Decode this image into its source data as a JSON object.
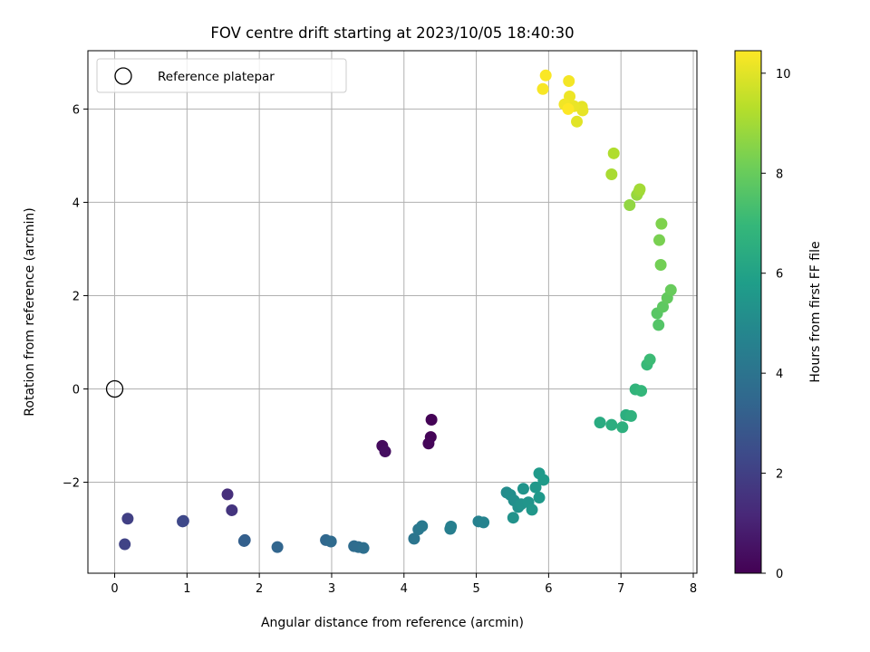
{
  "chart_data": {
    "type": "scatter",
    "title": "FOV centre drift starting at 2023/10/05 18:40:30",
    "xlabel": "Angular distance from reference (arcmin)",
    "ylabel": "Rotation from reference (arcmin)",
    "xlim": [
      -0.37,
      8.05
    ],
    "ylim": [
      -3.95,
      7.25
    ],
    "xticks": [
      0,
      1,
      2,
      3,
      4,
      5,
      6,
      7,
      8
    ],
    "yticks": [
      -2,
      0,
      2,
      4,
      6
    ],
    "grid": true,
    "legend": {
      "placement": "top-left",
      "entries": [
        "Reference platepar"
      ]
    },
    "reference_point": {
      "x": 0,
      "y": 0,
      "marker": "open-circle"
    },
    "colorbar": {
      "label": "Hours from first FF file",
      "range": [
        0,
        10.45
      ],
      "ticks": [
        0,
        2,
        4,
        6,
        8,
        10
      ],
      "colormap": "viridis"
    },
    "colors": {
      "viridis": [
        "#440154",
        "#482878",
        "#3e4989",
        "#31688e",
        "#26828e",
        "#1f9e89",
        "#35b779",
        "#6ece58",
        "#b5de2b",
        "#fde725"
      ],
      "grid": "#b0b0b0",
      "axis": "#000000"
    },
    "series": [
      {
        "x": [
          4.38,
          4.37,
          4.34,
          3.7,
          3.74,
          1.56,
          1.62,
          0.18,
          0.14,
          0.95,
          0.94,
          1.8,
          1.79,
          2.25,
          2.92,
          2.99,
          3.31,
          3.37,
          3.44,
          4.14,
          4.2,
          4.25,
          4.64,
          4.65,
          5.03,
          5.1,
          5.42,
          5.47,
          5.52,
          5.58,
          5.62,
          5.65,
          5.72,
          5.77,
          5.82,
          5.87,
          5.87,
          5.93,
          5.51,
          6.71,
          6.87,
          7.02,
          7.07,
          7.14,
          7.2,
          7.28,
          7.36,
          7.4,
          7.52,
          7.5,
          7.58,
          7.64,
          7.69,
          7.55,
          7.53,
          7.56,
          7.12,
          7.22,
          7.25,
          7.26,
          6.87,
          6.9,
          6.39,
          6.46,
          6.47,
          6.35,
          6.29,
          6.22,
          6.28,
          5.92,
          5.96,
          6.27
        ],
        "y": [
          -0.66,
          -1.03,
          -1.17,
          -1.22,
          -1.34,
          -2.26,
          -2.6,
          -2.78,
          -3.33,
          -2.83,
          -2.84,
          -3.24,
          -3.26,
          -3.39,
          -3.24,
          -3.27,
          -3.37,
          -3.39,
          -3.41,
          -3.21,
          -3.01,
          -2.94,
          -3.0,
          -2.95,
          -2.84,
          -2.86,
          -2.22,
          -2.27,
          -2.39,
          -2.53,
          -2.47,
          -2.14,
          -2.43,
          -2.59,
          -2.11,
          -2.33,
          -1.81,
          -1.95,
          -2.76,
          -0.72,
          -0.77,
          -0.82,
          -0.56,
          -0.58,
          -0.01,
          -0.04,
          0.52,
          0.63,
          1.37,
          1.62,
          1.76,
          1.95,
          2.12,
          2.66,
          3.19,
          3.54,
          3.94,
          4.16,
          4.24,
          4.28,
          4.6,
          5.05,
          5.73,
          6.05,
          5.97,
          6.06,
          6.27,
          6.1,
          6.6,
          6.43,
          6.72,
          6.0
        ],
        "hours": [
          0.05,
          0.1,
          0.15,
          0.3,
          0.4,
          1.4,
          1.6,
          2.0,
          2.1,
          2.2,
          2.3,
          3.1,
          3.2,
          3.4,
          3.5,
          3.6,
          3.65,
          3.7,
          3.8,
          4.05,
          4.15,
          4.25,
          4.4,
          4.5,
          4.6,
          4.7,
          5.05,
          5.15,
          5.2,
          5.25,
          5.35,
          5.4,
          5.45,
          5.5,
          5.55,
          5.6,
          5.65,
          5.7,
          5.3,
          6.4,
          6.5,
          6.6,
          6.55,
          6.7,
          6.8,
          6.9,
          7.0,
          7.1,
          7.6,
          7.7,
          7.8,
          7.9,
          8.0,
          8.2,
          8.3,
          8.4,
          8.7,
          8.8,
          8.9,
          9.0,
          9.1,
          9.2,
          10.0,
          10.05,
          10.1,
          10.15,
          10.2,
          10.25,
          10.3,
          10.35,
          10.4,
          10.45
        ]
      }
    ]
  }
}
